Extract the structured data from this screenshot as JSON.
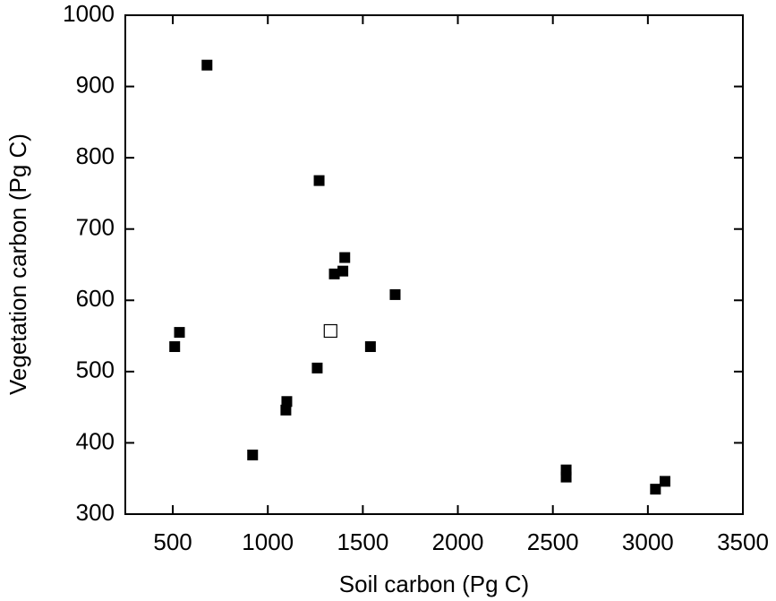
{
  "chart_data": {
    "type": "scatter",
    "x_label": "Soil carbon (Pg C)",
    "y_label": "Vegetation carbon (Pg C)",
    "xlim": [
      250,
      3500
    ],
    "xticks": [
      500,
      1000,
      1500,
      2000,
      2500,
      3000,
      3500
    ],
    "ylim": [
      300,
      1000
    ],
    "yticks": [
      300,
      400,
      500,
      600,
      700,
      800,
      900,
      1000
    ],
    "series": [
      {
        "color": "#000000",
        "fill": "#000000",
        "x": [
          680,
          1270,
          1405,
          1395,
          1350,
          1670,
          535,
          510,
          1540,
          1260,
          1100,
          1095,
          920,
          2570,
          2570,
          3040,
          3090
        ],
        "values": [
          930,
          768,
          660,
          641,
          637,
          608,
          555,
          535,
          535,
          505,
          458,
          446,
          383,
          362,
          352,
          335,
          346
        ]
      },
      {
        "color": "#000000",
        "fill": "none",
        "x": [
          1330
        ],
        "values": [
          557
        ]
      }
    ]
  }
}
